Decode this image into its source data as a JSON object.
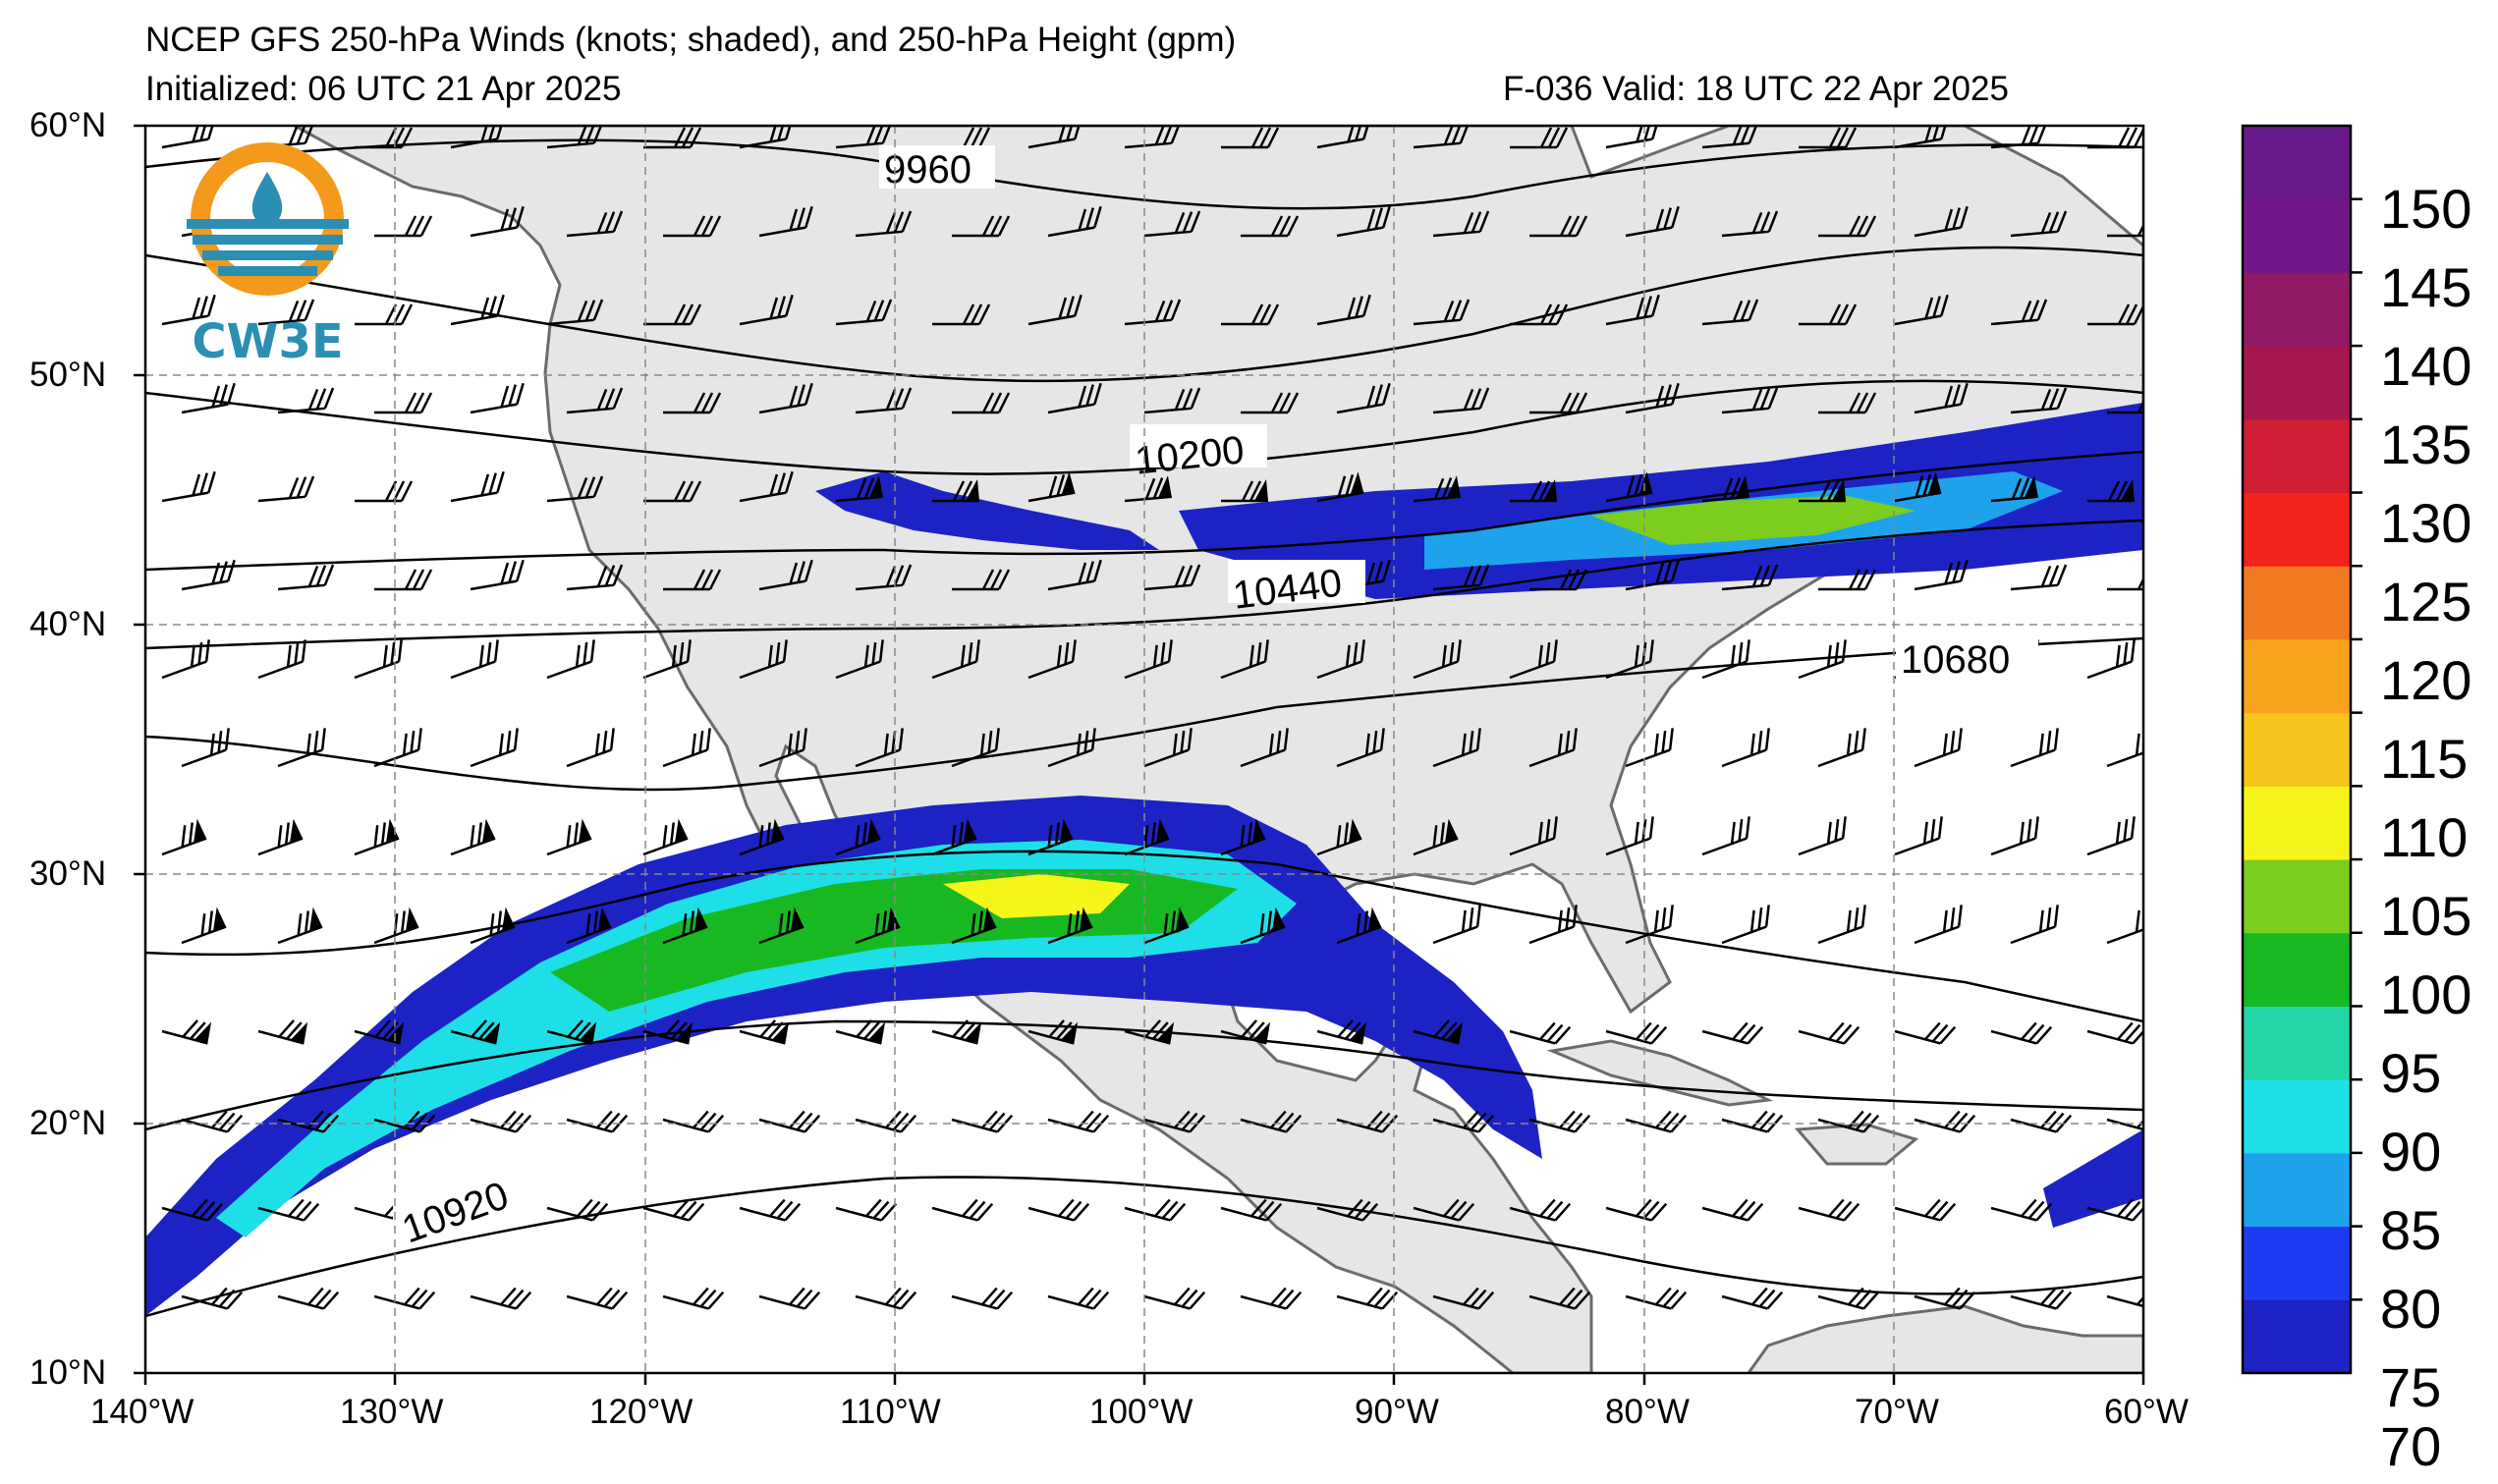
{
  "header": {
    "title": "NCEP GFS 250-hPa Winds (knots; shaded), and 250-hPa Height (gpm)",
    "initialized": "Initialized: 06 UTC 21 Apr 2025",
    "valid": "F-036  Valid: 18 UTC 22 Apr 2025"
  },
  "logo": {
    "text": "CW3E"
  },
  "map": {
    "lon_range": [
      -140,
      -60
    ],
    "lat_range": [
      10,
      60
    ],
    "x_ticks": [
      "140°W",
      "130°W",
      "120°W",
      "110°W",
      "100°W",
      "90°W",
      "80°W",
      "70°W",
      "60°W"
    ],
    "y_ticks": [
      "60°N",
      "50°N",
      "40°N",
      "30°N",
      "20°N",
      "10°N"
    ],
    "gridlines": "dashed",
    "land_color": "#e6e6e6",
    "contour_labels": [
      "9960",
      "10200",
      "10440",
      "10680",
      "10920"
    ]
  },
  "colorbar": {
    "levels": [
      70,
      75,
      80,
      85,
      90,
      95,
      100,
      105,
      110,
      115,
      120,
      125,
      130,
      135,
      140,
      145,
      150,
      155
    ],
    "labels": [
      "150",
      "145",
      "140",
      "135",
      "130",
      "125",
      "120",
      "115",
      "110",
      "105",
      "100",
      "95",
      "90",
      "85",
      "80",
      "75",
      "70"
    ],
    "colors": [
      "#1d22c4",
      "#1f3bf2",
      "#1fa2ec",
      "#1edfe8",
      "#22d6a7",
      "#18b822",
      "#7ccd1d",
      "#f6f51a",
      "#f7c41b",
      "#f7a31c",
      "#f47a22",
      "#f2221c",
      "#cf1d34",
      "#a5174e",
      "#921a64",
      "#72178a",
      "#681a8a"
    ]
  }
}
